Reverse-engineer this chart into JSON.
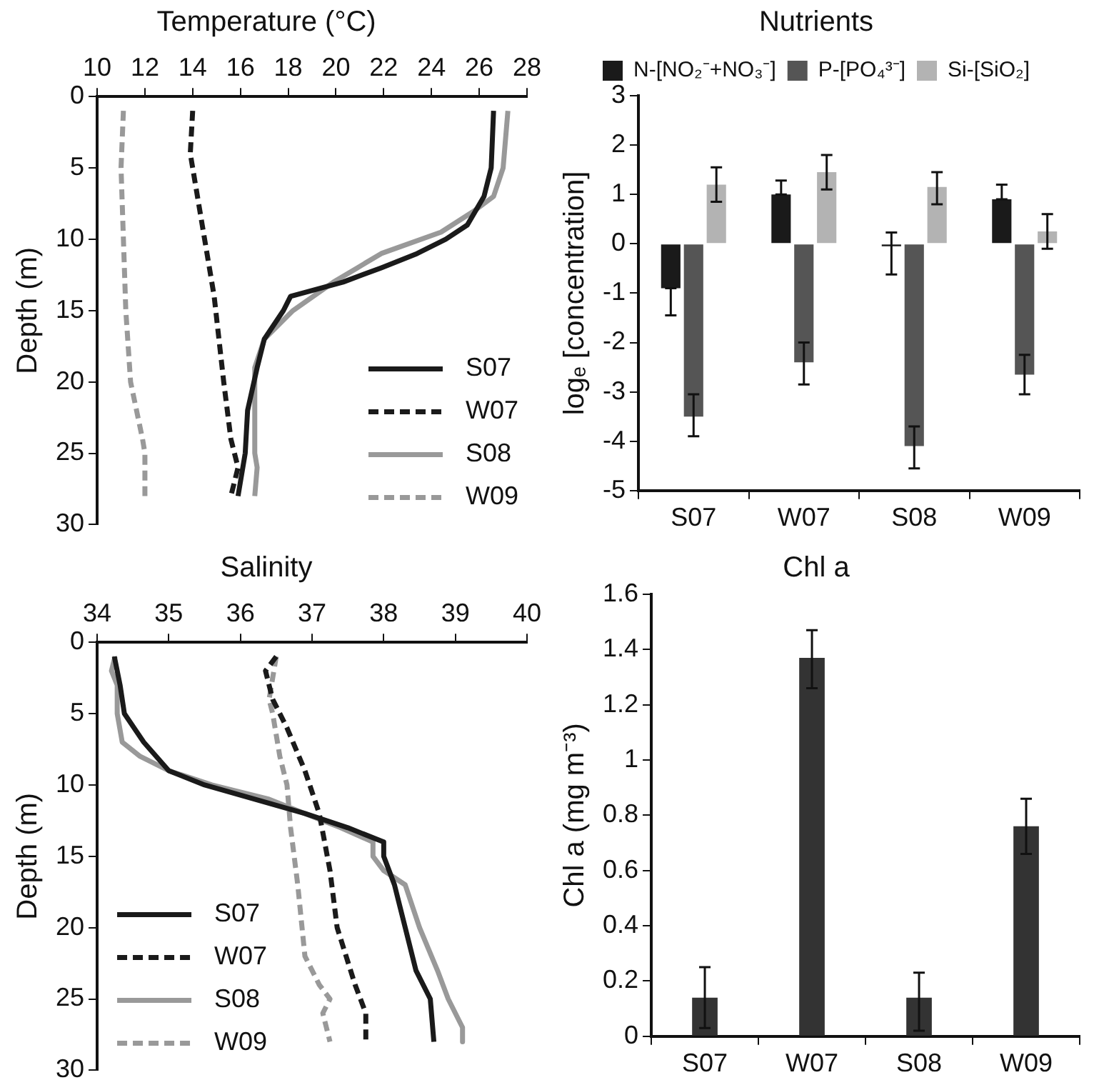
{
  "chart_data": [
    {
      "type": "line",
      "title": "Temperature (°C)",
      "ylabel": "Depth (m)",
      "xlim": [
        10,
        28
      ],
      "xticks": [
        10,
        12,
        14,
        16,
        18,
        20,
        22,
        24,
        26,
        28
      ],
      "ylim": [
        30,
        0
      ],
      "yticks": [
        0,
        5,
        10,
        15,
        20,
        25,
        30
      ],
      "marker": "none",
      "legend": "bottom right",
      "series": [
        {
          "name": "S07",
          "color": "#1a1a1a",
          "line_style": "solid",
          "x": [
            26.6,
            26.5,
            26.2,
            25.5,
            24.6,
            23.4,
            21.9,
            20.3,
            18.1,
            17.8,
            17.0,
            16.7,
            16.3,
            16.2,
            15.9
          ],
          "values": [
            1,
            5,
            7,
            9,
            10,
            11,
            12,
            13,
            14,
            15,
            17,
            19,
            22,
            25,
            28
          ]
        },
        {
          "name": "W07",
          "color": "#1a1a1a",
          "line_style": "dashed",
          "x": [
            14.0,
            13.9,
            14.4,
            14.9,
            15.3,
            15.6,
            15.9,
            15.6
          ],
          "values": [
            1,
            4,
            9,
            14,
            20,
            24,
            26,
            28
          ]
        },
        {
          "name": "S08",
          "color": "#999999",
          "line_style": "solid",
          "x": [
            27.2,
            27.0,
            26.6,
            25.8,
            24.4,
            21.9,
            20.9,
            19.9,
            18.2,
            17.0,
            16.6,
            16.6,
            16.7,
            16.6
          ],
          "values": [
            1,
            5,
            7,
            8,
            9.5,
            11,
            12,
            13,
            15,
            17,
            19,
            25,
            26,
            28
          ]
        },
        {
          "name": "W09",
          "color": "#999999",
          "line_style": "dashed",
          "x": [
            11.1,
            11.0,
            11.1,
            11.2,
            11.4,
            11.9,
            12.0,
            12.0
          ],
          "values": [
            1,
            5,
            10,
            15,
            20,
            24,
            25,
            28
          ]
        }
      ]
    },
    {
      "type": "bar",
      "title": "Nutrients",
      "ylabel": "logₑ [concentration]",
      "categories": [
        "S07",
        "W07",
        "S08",
        "W09"
      ],
      "ylim": [
        -5,
        3
      ],
      "yticks": [
        -5,
        -4,
        -3,
        -2,
        -1,
        0,
        1,
        2,
        3
      ],
      "legend": "top",
      "series": [
        {
          "name": "N-[NO₂⁻+NO₃⁻]",
          "color": "#1a1a1a",
          "values": [
            -0.9,
            1.0,
            -0.05,
            0.9
          ],
          "errors": [
            [
              -1.45,
              -0.9
            ],
            [
              1.0,
              1.28
            ],
            [
              -0.62,
              0.23
            ],
            [
              0.9,
              1.2
            ]
          ]
        },
        {
          "name": "P-[PO₄³⁻]",
          "color": "#555555",
          "values": [
            -3.5,
            -2.4,
            -4.1,
            -2.65
          ],
          "errors": [
            [
              -3.9,
              -3.05
            ],
            [
              -2.85,
              -2.0
            ],
            [
              -4.55,
              -3.7
            ],
            [
              -3.05,
              -2.25
            ]
          ]
        },
        {
          "name": "Si-[SiO₂]",
          "color": "#b3b3b3",
          "values": [
            1.2,
            1.45,
            1.15,
            0.25
          ],
          "errors": [
            [
              0.85,
              1.55
            ],
            [
              1.1,
              1.8
            ],
            [
              0.8,
              1.45
            ],
            [
              -0.1,
              0.6
            ]
          ]
        }
      ]
    },
    {
      "type": "line",
      "title": "Salinity",
      "ylabel": "Depth (m)",
      "xlim": [
        34,
        40
      ],
      "xticks": [
        34,
        35,
        36,
        37,
        38,
        39,
        40
      ],
      "ylim": [
        30,
        0
      ],
      "yticks": [
        0,
        5,
        10,
        15,
        20,
        25,
        30
      ],
      "marker": "none",
      "legend": "bottom left",
      "series": [
        {
          "name": "S07",
          "color": "#1a1a1a",
          "line_style": "solid",
          "x": [
            34.24,
            34.32,
            34.38,
            34.65,
            35.0,
            35.5,
            36.2,
            36.9,
            37.5,
            38.0,
            38.0,
            38.15,
            38.3,
            38.45,
            38.65,
            38.7
          ],
          "values": [
            1,
            3,
            5,
            7,
            9,
            10,
            11,
            12,
            13,
            14,
            15,
            17,
            20,
            23,
            25,
            28
          ]
        },
        {
          "name": "W07",
          "color": "#1a1a1a",
          "line_style": "dashed",
          "x": [
            36.5,
            36.35,
            36.45,
            36.65,
            36.9,
            37.1,
            37.25,
            37.35,
            37.6,
            37.75,
            37.75
          ],
          "values": [
            1,
            2,
            4,
            6,
            9,
            12,
            16,
            20,
            24,
            26,
            28
          ]
        },
        {
          "name": "S08",
          "color": "#999999",
          "line_style": "solid",
          "x": [
            34.25,
            34.2,
            34.28,
            34.28,
            34.35,
            34.6,
            35.0,
            35.6,
            36.4,
            36.9,
            37.4,
            37.85,
            37.85,
            38.0,
            38.3,
            38.5,
            38.75,
            38.9,
            39.1,
            39.1
          ],
          "values": [
            1,
            2,
            3,
            5,
            7,
            8,
            9,
            10,
            11,
            12,
            13,
            14,
            15,
            16,
            17,
            20,
            23,
            25,
            27,
            28
          ]
        },
        {
          "name": "W09",
          "color": "#999999",
          "line_style": "dashed",
          "x": [
            36.5,
            36.4,
            36.45,
            36.55,
            36.65,
            36.7,
            36.8,
            36.9,
            37.1,
            37.25,
            37.15,
            37.2,
            37.25
          ],
          "values": [
            1,
            4,
            5,
            8,
            10,
            13,
            17,
            22,
            24,
            25,
            26,
            27,
            28
          ]
        }
      ]
    },
    {
      "type": "bar",
      "title": "Chl a",
      "ylabel": "Chl a (mg m⁻³)",
      "categories": [
        "S07",
        "W07",
        "S08",
        "W09"
      ],
      "ylim": [
        0,
        1.6
      ],
      "yticks": [
        0,
        0.2,
        0.4,
        0.6,
        0.8,
        1,
        1.2,
        1.4,
        1.6
      ],
      "color": "#333333",
      "values": [
        0.14,
        1.37,
        0.14,
        0.76
      ],
      "errors": [
        [
          0.03,
          0.25
        ],
        [
          1.26,
          1.47
        ],
        [
          0.02,
          0.23
        ],
        [
          0.66,
          0.86
        ]
      ]
    }
  ]
}
